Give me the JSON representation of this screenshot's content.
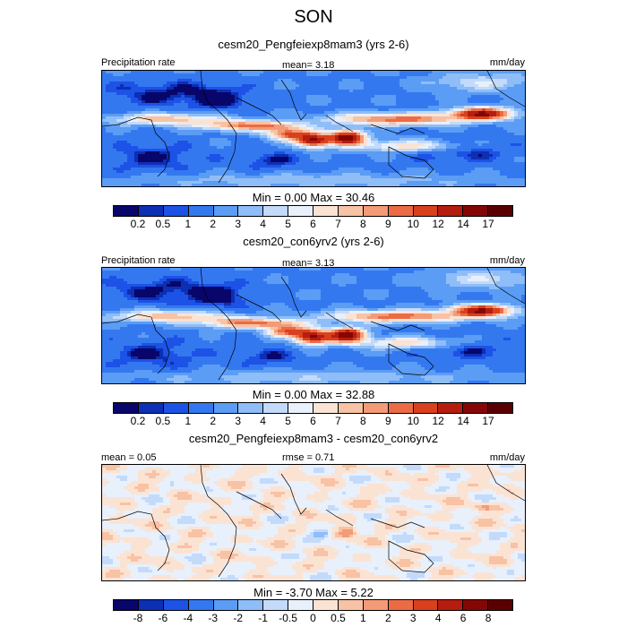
{
  "page": {
    "title": "SON"
  },
  "palettes": {
    "precip": [
      "#08066b",
      "#0c2fb3",
      "#1d52e6",
      "#3478f0",
      "#5b9cf5",
      "#8fbdf8",
      "#c3dafb",
      "#e8f0fb",
      "#fbe3d3",
      "#f8c2a5",
      "#f39b77",
      "#ec6b45",
      "#d9401e",
      "#b51d0e",
      "#850705",
      "#5a0000"
    ],
    "diff": [
      "#08066b",
      "#0c2fb3",
      "#1d52e6",
      "#3478f0",
      "#5b9cf5",
      "#8fbdf8",
      "#c3dafb",
      "#e8f0fb",
      "#fbe3d3",
      "#f8c2a5",
      "#f39b77",
      "#ec6b45",
      "#d9401e",
      "#b51d0e",
      "#850705",
      "#5a0000"
    ]
  },
  "panels": [
    {
      "subtitle": "cesm20_Pengfeiexp8mam3 (yrs 2-6)",
      "left_label": "Precipitation rate",
      "center_label": "mean=   3.18",
      "right_label": "mm/day",
      "minmax": "Min =   0.00 Max =  30.46",
      "colorbar_ticks": [
        "0.2",
        "0.5",
        "1",
        "2",
        "3",
        "4",
        "5",
        "6",
        "7",
        "8",
        "9",
        "10",
        "12",
        "14",
        "17"
      ]
    },
    {
      "subtitle": "cesm20_con6yrv2 (yrs 2-6)",
      "left_label": "Precipitation rate",
      "center_label": "mean=   3.13",
      "right_label": "mm/day",
      "minmax": "Min =   0.00 Max =  32.88",
      "colorbar_ticks": [
        "0.2",
        "0.5",
        "1",
        "2",
        "3",
        "4",
        "5",
        "6",
        "7",
        "8",
        "9",
        "10",
        "12",
        "14",
        "17"
      ]
    },
    {
      "subtitle": "cesm20_Pengfeiexp8mam3 - cesm20_con6yrv2",
      "left_label": "mean =   0.05",
      "center_label": "rmse =   0.71",
      "right_label": "mm/day",
      "minmax": "Min =  -3.70 Max =   5.22",
      "colorbar_ticks": [
        "-8",
        "-6",
        "-4",
        "-3",
        "-2",
        "-1",
        "-0.5",
        "0",
        "0.5",
        "1",
        "2",
        "3",
        "4",
        "6",
        "8"
      ]
    }
  ],
  "chart_data": [
    {
      "type": "heatmap",
      "title": "SON",
      "subtitle": "cesm20_Pengfeiexp8mam3 (yrs 2-6)",
      "variable": "Precipitation rate",
      "units": "mm/day",
      "mean": 3.18,
      "min": 0.0,
      "max": 30.46,
      "levels": [
        0.2,
        0.5,
        1,
        2,
        3,
        4,
        5,
        6,
        7,
        8,
        9,
        10,
        12,
        14,
        17
      ],
      "pattern": "base"
    },
    {
      "type": "heatmap",
      "subtitle": "cesm20_con6yrv2 (yrs 2-6)",
      "variable": "Precipitation rate",
      "units": "mm/day",
      "mean": 3.13,
      "min": 0.0,
      "max": 32.88,
      "levels": [
        0.2,
        0.5,
        1,
        2,
        3,
        4,
        5,
        6,
        7,
        8,
        9,
        10,
        12,
        14,
        17
      ],
      "pattern": "base"
    },
    {
      "type": "heatmap",
      "subtitle": "cesm20_Pengfeiexp8mam3 - cesm20_con6yrv2",
      "units": "mm/day",
      "mean": 0.05,
      "rmse": 0.71,
      "min": -3.7,
      "max": 5.22,
      "levels": [
        -8,
        -6,
        -4,
        -3,
        -2,
        -1,
        -0.5,
        0,
        0.5,
        1,
        2,
        3,
        4,
        6,
        8
      ],
      "pattern": "diff"
    }
  ]
}
